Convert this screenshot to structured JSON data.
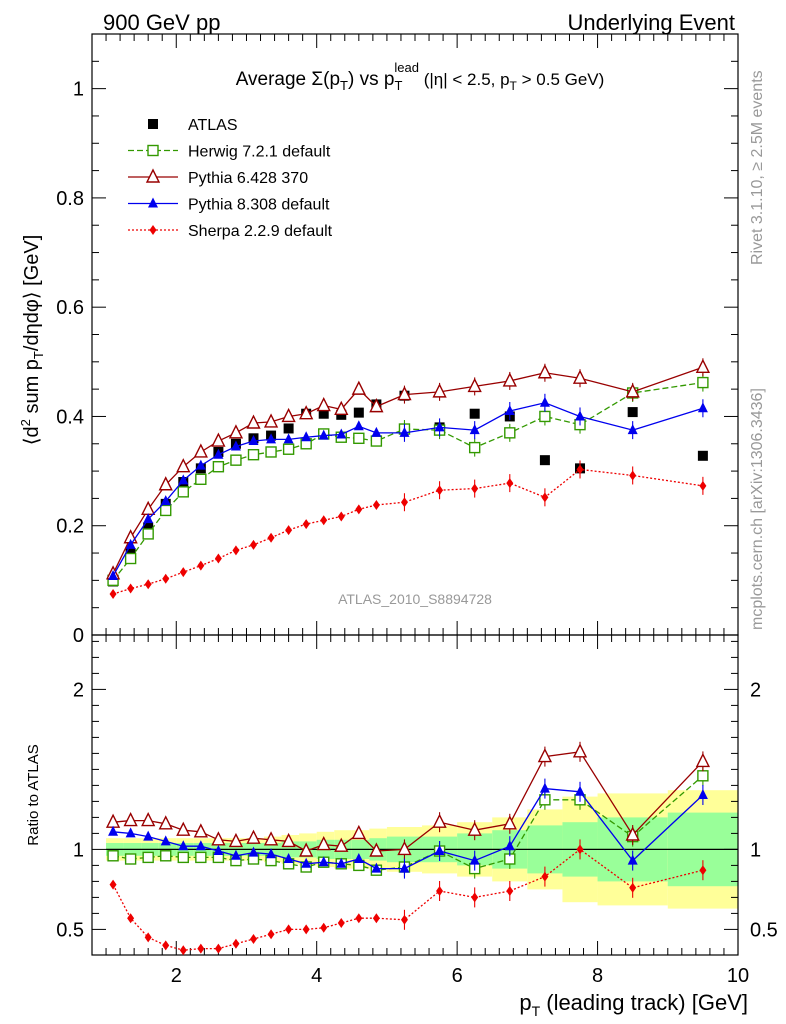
{
  "header": {
    "left": "900 GeV pp",
    "right": "Underlying Event"
  },
  "side_labels": {
    "rivet": "Rivet 3.1.10, ≥ 2.5M events",
    "mcplots": "mcplots.cern.ch [arXiv:1306.3436]"
  },
  "chart_data": [
    {
      "type": "line",
      "title": "Average Σ(p_T) vs p_T^lead (|η| < 2.5, p_T > 0.5 GeV)",
      "title_parts": {
        "a": "Average ",
        "b": "Σ(p",
        "b_sub": "T",
        "c": ") vs p",
        "c_sup": "lead",
        "c_sub": "T",
        "d": " (|η| < 2.5, p",
        "d_sub": "T",
        "e": " > 0.5 GeV)"
      },
      "ylabel": "⟨d² sum p_T/dηdφ⟩ [GeV]",
      "ylabel_parts": {
        "a": "⟨d",
        "a_sup": "2",
        "b": " sum p",
        "b_sub": "T",
        "c": "/dηdφ⟩ [GeV]"
      },
      "xlim": [
        0.8,
        10.0
      ],
      "ylim": [
        0,
        1.1
      ],
      "yticks": [
        0,
        0.2,
        0.4,
        0.6,
        0.8,
        1
      ],
      "ytick_labels": [
        "0",
        "0.2",
        "0.4",
        "0.6",
        "0.8",
        "1"
      ],
      "watermark": "ATLAS_2010_S8894728",
      "legend_position": "top-left",
      "x": [
        1.1,
        1.35,
        1.6,
        1.85,
        2.1,
        2.35,
        2.6,
        2.85,
        3.1,
        3.35,
        3.6,
        3.85,
        4.1,
        4.35,
        4.6,
        4.85,
        5.25,
        5.75,
        6.25,
        6.75,
        7.25,
        7.75,
        8.5,
        9.5
      ],
      "series": [
        {
          "name": "ATLAS",
          "color": "#000000",
          "marker": "square-filled",
          "values": [
            0.098,
            0.15,
            0.197,
            0.24,
            0.28,
            0.305,
            0.335,
            0.35,
            0.36,
            0.365,
            0.378,
            0.405,
            0.405,
            0.403,
            0.407,
            0.422,
            0.438,
            0.38,
            0.405,
            0.4,
            0.32,
            0.305,
            0.408,
            0.328
          ]
        },
        {
          "name": "Herwig 7.2.1 default",
          "color": "#339900",
          "marker": "square-open",
          "dash": "dashed",
          "values": [
            0.1,
            0.14,
            0.185,
            0.228,
            0.262,
            0.285,
            0.308,
            0.32,
            0.33,
            0.335,
            0.34,
            0.35,
            0.368,
            0.362,
            0.36,
            0.355,
            0.377,
            0.375,
            0.343,
            0.37,
            0.4,
            0.385,
            0.443,
            0.462
          ]
        },
        {
          "name": "Pythia 6.428 370",
          "color": "#990000",
          "marker": "triangle-open",
          "dash": "solid",
          "values": [
            0.112,
            0.178,
            0.23,
            0.275,
            0.308,
            0.335,
            0.355,
            0.37,
            0.388,
            0.39,
            0.4,
            0.405,
            0.42,
            0.413,
            0.45,
            0.418,
            0.44,
            0.445,
            0.455,
            0.465,
            0.48,
            0.47,
            0.445,
            0.49
          ]
        },
        {
          "name": "Pythia 8.308 default",
          "color": "#0000ee",
          "marker": "triangle-filled",
          "dash": "solid",
          "values": [
            0.108,
            0.165,
            0.212,
            0.245,
            0.283,
            0.31,
            0.33,
            0.345,
            0.355,
            0.358,
            0.358,
            0.362,
            0.365,
            0.367,
            0.382,
            0.37,
            0.37,
            0.38,
            0.375,
            0.41,
            0.425,
            0.4,
            0.375,
            0.415
          ]
        },
        {
          "name": "Sherpa 2.2.9 default",
          "color": "#ee0000",
          "marker": "diamond-filled",
          "dash": "dotted",
          "values": [
            0.075,
            0.085,
            0.093,
            0.103,
            0.115,
            0.127,
            0.14,
            0.155,
            0.165,
            0.178,
            0.192,
            0.203,
            0.21,
            0.217,
            0.23,
            0.238,
            0.243,
            0.265,
            0.268,
            0.278,
            0.252,
            0.303,
            0.292,
            0.273
          ]
        }
      ]
    },
    {
      "type": "line",
      "ylabel": "Ratio to ATLAS",
      "xlabel": "p_T (leading track) [GeV]",
      "xlabel_parts": {
        "a": "p",
        "a_sub": "T",
        "b": " (leading track) [GeV]"
      },
      "xlim": [
        0.8,
        10.0
      ],
      "ylim": [
        0.34,
        2.34
      ],
      "yticks": [
        0.5,
        1,
        2
      ],
      "ytick_labels": [
        "0.5",
        "1",
        "2"
      ],
      "xticks": [
        2,
        4,
        6,
        8,
        10
      ],
      "xtick_labels": [
        "2",
        "4",
        "6",
        "8",
        "10"
      ],
      "bands": {
        "x_edges": [
          1.0,
          1.25,
          1.5,
          1.75,
          2.0,
          2.25,
          2.5,
          2.75,
          3.0,
          3.25,
          3.5,
          3.75,
          4.0,
          4.25,
          4.5,
          4.75,
          5.0,
          5.5,
          6.0,
          6.5,
          7.0,
          7.5,
          8.0,
          9.0,
          10.0
        ],
        "green_halfwidth": [
          0.04,
          0.04,
          0.04,
          0.04,
          0.04,
          0.04,
          0.04,
          0.04,
          0.04,
          0.04,
          0.05,
          0.05,
          0.06,
          0.06,
          0.06,
          0.07,
          0.08,
          0.08,
          0.1,
          0.12,
          0.15,
          0.17,
          0.2,
          0.23
        ],
        "yellow_halfwidth": [
          0.07,
          0.07,
          0.07,
          0.07,
          0.07,
          0.07,
          0.07,
          0.07,
          0.07,
          0.08,
          0.09,
          0.1,
          0.11,
          0.12,
          0.12,
          0.13,
          0.14,
          0.15,
          0.17,
          0.2,
          0.25,
          0.33,
          0.35,
          0.37
        ]
      },
      "series": [
        {
          "name": "Herwig 7.2.1 default",
          "values": [
            0.96,
            0.94,
            0.95,
            0.96,
            0.95,
            0.95,
            0.95,
            0.93,
            0.94,
            0.93,
            0.91,
            0.89,
            0.92,
            0.91,
            0.9,
            0.87,
            0.89,
            0.99,
            0.88,
            0.94,
            1.31,
            1.31,
            1.08,
            1.46
          ]
        },
        {
          "name": "Pythia 6.428 370",
          "values": [
            1.17,
            1.18,
            1.18,
            1.16,
            1.12,
            1.11,
            1.06,
            1.05,
            1.07,
            1.06,
            1.05,
            0.99,
            1.03,
            1.02,
            1.1,
            0.99,
            1.0,
            1.17,
            1.12,
            1.16,
            1.58,
            1.61,
            1.09,
            1.55
          ]
        },
        {
          "name": "Pythia 8.308 default",
          "values": [
            1.11,
            1.1,
            1.08,
            1.05,
            1.02,
            1.02,
            0.99,
            0.96,
            0.98,
            0.97,
            0.94,
            0.91,
            0.92,
            0.91,
            0.94,
            0.88,
            0.88,
            0.99,
            0.93,
            1.02,
            1.38,
            1.36,
            0.93,
            1.34
          ]
        },
        {
          "name": "Sherpa 2.2.9 default",
          "values": [
            0.78,
            0.57,
            0.45,
            0.4,
            0.37,
            0.38,
            0.38,
            0.41,
            0.44,
            0.47,
            0.5,
            0.5,
            0.51,
            0.54,
            0.57,
            0.57,
            0.56,
            0.74,
            0.7,
            0.74,
            0.83,
            1.0,
            0.76,
            0.87
          ]
        }
      ]
    }
  ]
}
